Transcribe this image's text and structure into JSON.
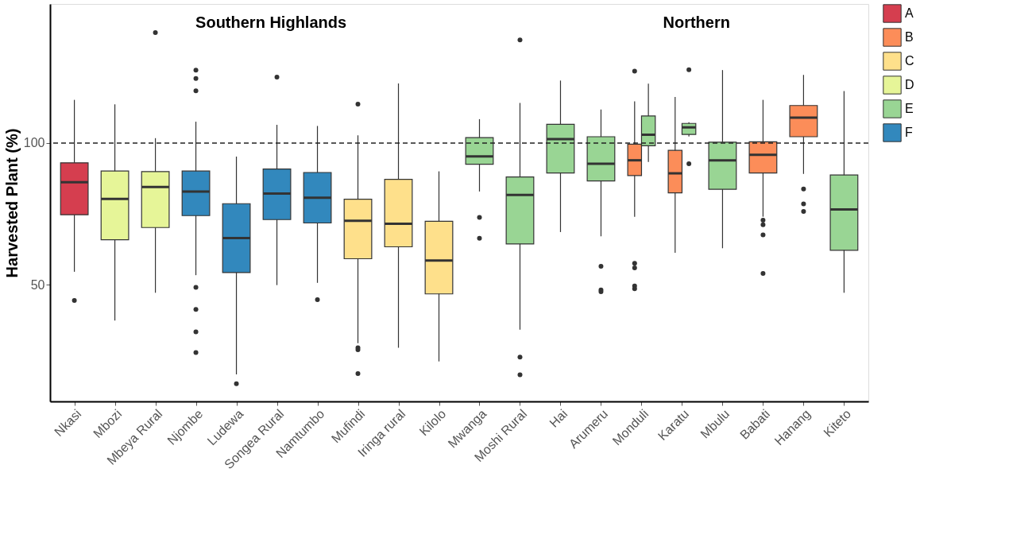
{
  "chart_data": {
    "type": "box",
    "ylabel": "Harvested Plant (%)",
    "categories": [
      "Nkasi",
      "Mbozi",
      "Mbeya Rural",
      "Njombe",
      "Ludewa",
      "Songea Rural",
      "Namtumbo",
      "Mufindi",
      "Iringa rural",
      "Kilolo",
      "Mwanga",
      "Moshi Rural",
      "Hai",
      "Arumeru",
      "Monduli",
      "Karatu",
      "Mbulu",
      "Babati",
      "Hanang",
      "Kiteto"
    ],
    "ylim": [
      8.9,
      149
    ],
    "yticks": [
      50,
      100
    ],
    "grid": false,
    "legend": "right",
    "ref_lines": [
      {
        "axis": "y",
        "value": 100,
        "line_style": "dashed"
      }
    ],
    "annotations": [
      "Southern Highlands",
      "Northern"
    ],
    "series": [
      {
        "name": "A",
        "color": "#d53e4f",
        "boxes": [
          {
            "low": 54.6,
            "q1": 74.7,
            "median": 86.2,
            "q3": 93.0,
            "high": 115.2,
            "outliers": [
              44.5
            ]
          },
          null,
          null,
          null,
          null,
          null,
          null,
          null,
          null,
          null,
          null,
          null,
          null,
          null,
          null,
          null,
          null,
          null,
          null,
          null
        ]
      },
      {
        "name": "B",
        "color": "#fc8d59",
        "boxes": [
          null,
          null,
          null,
          null,
          null,
          null,
          null,
          null,
          null,
          null,
          null,
          null,
          null,
          null,
          {
            "low": 74.0,
            "q1": 88.5,
            "median": 93.9,
            "q3": 99.6,
            "high": 114.7,
            "outliers": [
              125.3,
              57.6,
              56.0,
              49.6,
              48.6
            ]
          },
          {
            "low": 61.3,
            "q1": 82.4,
            "median": 89.3,
            "q3": 97.4,
            "high": 116.2
          },
          null,
          {
            "low": 74.0,
            "q1": 89.4,
            "median": 95.8,
            "q3": 100.4,
            "high": 115.2,
            "outliers": [
              72.8,
              71.2,
              67.6,
              54.0
            ]
          },
          {
            "low": 89.1,
            "q1": 102.2,
            "median": 108.9,
            "q3": 113.2,
            "high": 124.0,
            "outliers": [
              83.8,
              78.5,
              75.9
            ]
          },
          null
        ]
      },
      {
        "name": "C",
        "color": "#fee08b",
        "boxes": [
          null,
          null,
          null,
          null,
          null,
          null,
          null,
          {
            "low": 29.4,
            "q1": 59.2,
            "median": 72.6,
            "q3": 80.2,
            "high": 102.7,
            "outliers": [
              113.7,
              27.8,
              27.1,
              18.7
            ]
          },
          {
            "low": 27.8,
            "q1": 63.4,
            "median": 71.5,
            "q3": 87.2,
            "high": 121.0
          },
          {
            "low": 23.0,
            "q1": 46.8,
            "median": 58.6,
            "q3": 72.4,
            "high": 90.0
          },
          null,
          null,
          null,
          null,
          null,
          null,
          null,
          null,
          null,
          null
        ]
      },
      {
        "name": "D",
        "color": "#e6f598",
        "boxes": [
          null,
          {
            "low": 37.4,
            "q1": 65.9,
            "median": 80.3,
            "q3": 90.1,
            "high": 113.6
          },
          {
            "low": 47.2,
            "q1": 70.2,
            "median": 84.5,
            "q3": 89.9,
            "high": 101.7,
            "outliers": [
              138.9
            ]
          },
          null,
          null,
          null,
          null,
          null,
          null,
          null,
          null,
          null,
          null,
          null,
          null,
          null,
          null,
          null,
          null,
          null
        ]
      },
      {
        "name": "E",
        "color": "#99d594",
        "boxes": [
          null,
          null,
          null,
          null,
          null,
          null,
          null,
          null,
          null,
          null,
          {
            "low": 82.9,
            "q1": 92.5,
            "median": 95.3,
            "q3": 101.9,
            "high": 108.4,
            "outliers": [
              73.8,
              66.4
            ]
          },
          {
            "low": 34.2,
            "q1": 64.4,
            "median": 81.7,
            "q3": 88.0,
            "high": 114.1,
            "outliers": [
              136.3,
              24.5,
              18.3
            ]
          },
          {
            "low": 68.6,
            "q1": 89.4,
            "median": 101.4,
            "q3": 106.6,
            "high": 122.0
          },
          {
            "low": 67.1,
            "q1": 86.6,
            "median": 92.7,
            "q3": 102.2,
            "high": 111.8,
            "outliers": [
              56.5,
              48.2,
              47.6
            ]
          },
          {
            "low": 93.3,
            "q1": 99.0,
            "median": 102.9,
            "q3": 109.5,
            "high": 120.9
          },
          {
            "low": 102.3,
            "q1": 103.0,
            "median": 105.5,
            "q3": 106.9,
            "high": 107.3,
            "outliers": [
              125.8,
              92.7
            ]
          },
          {
            "low": 62.9,
            "q1": 83.7,
            "median": 93.9,
            "q3": 100.3,
            "high": 125.7
          },
          null,
          null,
          {
            "low": 47.2,
            "q1": 62.2,
            "median": 76.6,
            "q3": 88.7,
            "high": 118.3
          }
        ]
      },
      {
        "name": "F",
        "color": "#3288bd",
        "boxes": [
          null,
          null,
          null,
          {
            "low": 53.4,
            "q1": 74.4,
            "median": 82.9,
            "q3": 90.1,
            "high": 107.5,
            "outliers": [
              125.7,
              122.7,
              118.4,
              49.1,
              41.3,
              33.4,
              26.1
            ]
          },
          {
            "low": 18.4,
            "q1": 54.3,
            "median": 66.5,
            "q3": 78.6,
            "high": 95.2,
            "outliers": [
              15.1
            ]
          },
          {
            "low": 49.9,
            "q1": 73.0,
            "median": 82.2,
            "q3": 90.8,
            "high": 106.4,
            "outliers": [
              123.2
            ]
          },
          {
            "low": 50.7,
            "q1": 71.8,
            "median": 80.7,
            "q3": 89.6,
            "high": 106.0,
            "outliers": [
              44.8
            ]
          },
          null,
          null,
          null,
          null,
          null,
          null,
          null,
          null,
          null,
          null,
          null,
          null,
          null
        ]
      }
    ]
  }
}
